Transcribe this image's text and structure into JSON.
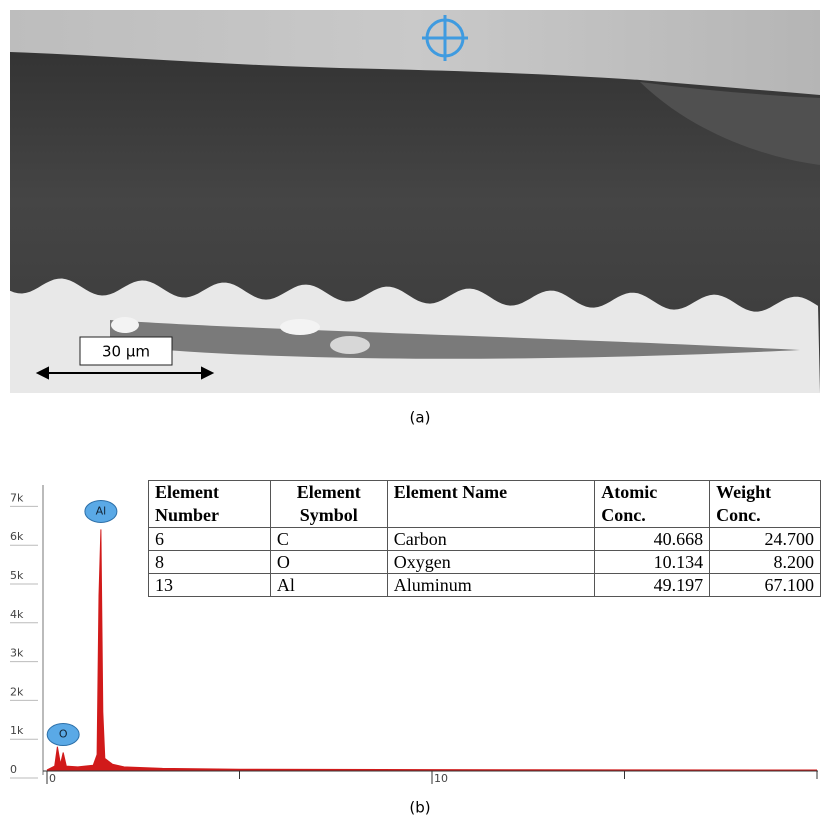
{
  "figure_a": {
    "scale_bar": "30 µm",
    "caption": "(a)"
  },
  "chart_data": {
    "type": "area",
    "color": "#d11a1a",
    "x": [
      0,
      0.2,
      0.27,
      0.35,
      0.42,
      0.5,
      0.8,
      1.2,
      1.3,
      1.35,
      1.4,
      1.45,
      1.5,
      1.7,
      2,
      3,
      5,
      10,
      12.5,
      15,
      20
    ],
    "values": [
      0,
      100,
      600,
      150,
      450,
      100,
      80,
      120,
      400,
      4500,
      6200,
      1500,
      300,
      150,
      80,
      40,
      20,
      10,
      5,
      2,
      0
    ],
    "xlim": [
      0,
      20
    ],
    "xticks": [
      0,
      10
    ],
    "xminorticks": [
      5,
      15,
      20
    ],
    "ylim": [
      0,
      7500
    ],
    "yticks": [
      0,
      {
        "value": 1000,
        "label": "1k"
      },
      {
        "value": 2000,
        "label": "2k"
      },
      {
        "value": 3000,
        "label": "3k"
      },
      {
        "value": 4000,
        "label": "4k"
      },
      {
        "value": 5000,
        "label": "5k"
      },
      {
        "value": 6000,
        "label": "6k"
      },
      {
        "value": 7000,
        "label": "7k"
      }
    ],
    "peak_labels": [
      {
        "label": "Al",
        "x": 1.4,
        "y": 6200
      },
      {
        "label": "O",
        "x": 0.42,
        "y": 450
      }
    ],
    "caption": "(b)"
  },
  "table": {
    "header": [
      "Element Number",
      "Element Symbol",
      "Element Name",
      "Atomic Conc.",
      "Weight Conc."
    ],
    "rows": [
      [
        "6",
        "C",
        "Carbon",
        "40.668",
        "24.700"
      ],
      [
        "8",
        "O",
        "Oxygen",
        "10.134",
        "8.200"
      ],
      [
        "13",
        "Al",
        "Aluminum",
        "49.197",
        "67.100"
      ]
    ]
  }
}
